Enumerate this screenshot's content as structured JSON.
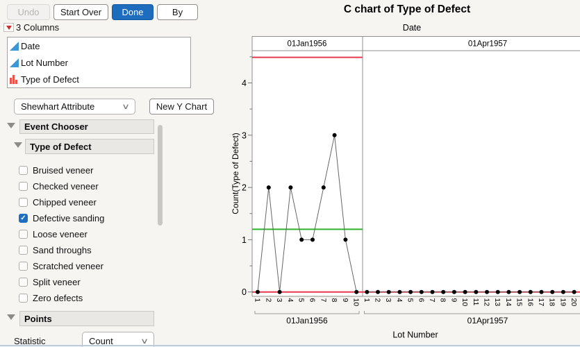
{
  "toolbar": {
    "undo_label": "Undo",
    "start_over_label": "Start Over",
    "done_label": "Done",
    "by_label": "By",
    "done_color": "#1e6cbe"
  },
  "columns_panel": {
    "menu_icon": "red-triangle-icon",
    "header": "3 Columns",
    "items": [
      {
        "label": "Date",
        "icon": "continuous-column-icon"
      },
      {
        "label": "Lot Number",
        "icon": "continuous-column-icon"
      },
      {
        "label": "Type of Defect",
        "icon": "bar-chart-column-icon"
      }
    ]
  },
  "chart_controls": {
    "chart_type_value": "Shewhart Attribute",
    "chart_type_icon": "chevron-down-icon",
    "new_chart_label": "New Y Chart"
  },
  "event_chooser": {
    "header": "Event Chooser",
    "group_header": "Type of Defect",
    "options": [
      {
        "label": "Bruised veneer",
        "checked": false
      },
      {
        "label": "Checked veneer",
        "checked": false
      },
      {
        "label": "Chipped veneer",
        "checked": false
      },
      {
        "label": "Defective sanding",
        "checked": true
      },
      {
        "label": "Loose veneer",
        "checked": false
      },
      {
        "label": "Sand throughs",
        "checked": false
      },
      {
        "label": "Scratched veneer",
        "checked": false
      },
      {
        "label": "Split veneer",
        "checked": false
      },
      {
        "label": "Zero defects",
        "checked": false
      }
    ],
    "checked_color": "#1d6fc0"
  },
  "points_section": {
    "header": "Points",
    "statistic_label": "Statistic",
    "statistic_value": "Count",
    "statistic_icon": "chevron-down-icon"
  },
  "chart_data": {
    "type": "line",
    "title": "C chart of Type of Defect",
    "panel_axis_label": "Date",
    "xlabel": "Lot Number",
    "ylabel": "Count(Type of Defect)",
    "yticks": [
      0,
      1,
      2,
      3,
      4
    ],
    "ylim": [
      -0.09,
      4.62
    ],
    "grid": false,
    "center_line": 1.2,
    "ucl": 4.49,
    "lcl": 0,
    "colors": {
      "limit_line": "#e8374f",
      "center_line": "#2db32d",
      "point": "#000000",
      "connector": "#666666"
    },
    "panels": [
      {
        "label": "01Jan1956",
        "x": [
          1,
          2,
          3,
          4,
          5,
          6,
          7,
          8,
          9,
          10
        ],
        "values": [
          0,
          2,
          0,
          2,
          1,
          1,
          2,
          3,
          1,
          0
        ]
      },
      {
        "label": "01Apr1957",
        "x": [
          1,
          2,
          3,
          4,
          5,
          6,
          7,
          8,
          9,
          10,
          11,
          12,
          13,
          14,
          15,
          16,
          17,
          18,
          19,
          20
        ],
        "values": [
          0,
          0,
          0,
          0,
          0,
          0,
          0,
          0,
          0,
          0,
          0,
          0,
          0,
          0,
          0,
          0,
          0,
          0,
          0,
          0
        ]
      }
    ]
  }
}
